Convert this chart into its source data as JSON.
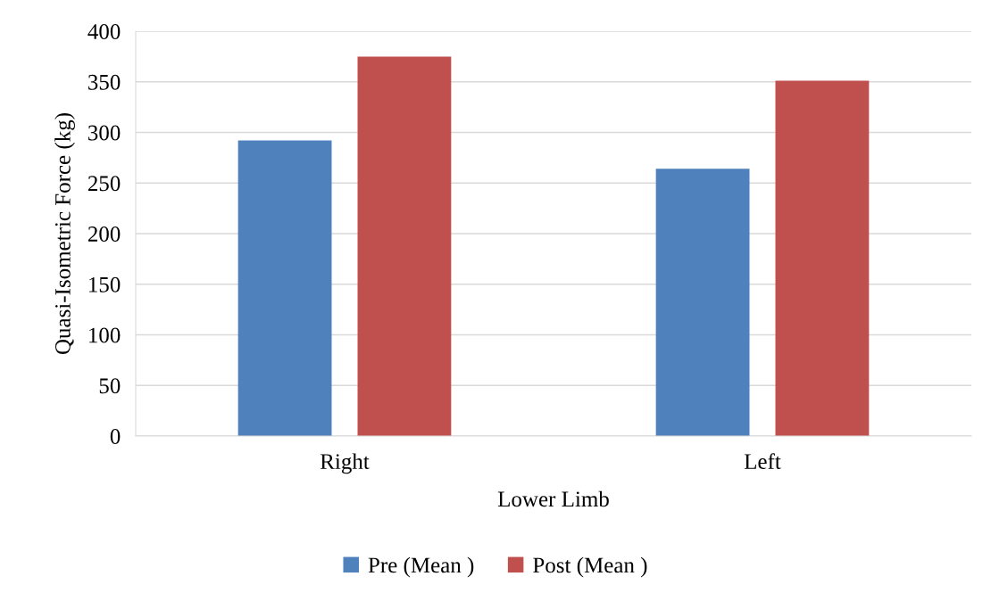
{
  "chart_data": {
    "type": "bar",
    "xlabel": "Lower Limb",
    "ylabel": "Quasi-Isometric Force (kg)",
    "categories": [
      "Right",
      "Left"
    ],
    "series": [
      {
        "name": "Pre (Mean )",
        "color": "#4f81bd",
        "values": [
          292,
          264
        ]
      },
      {
        "name": "Post (Mean )",
        "color": "#c0504d",
        "values": [
          375,
          351
        ]
      }
    ],
    "ylim": [
      0,
      400
    ],
    "yticks": [
      0,
      50,
      100,
      150,
      200,
      250,
      300,
      350,
      400
    ],
    "grid": "y",
    "legend": "bottom"
  }
}
